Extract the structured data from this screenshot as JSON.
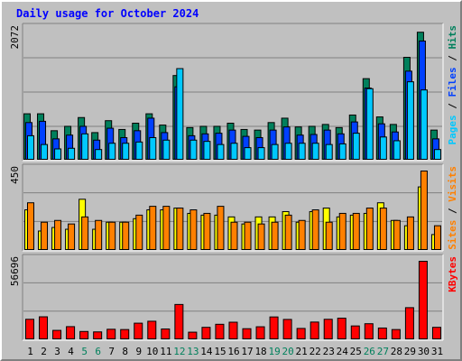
{
  "colors": {
    "background": "#c0c0c0",
    "title": "#0000ff",
    "hits": "#00805c",
    "files": "#0040ff",
    "pages": "#00c8ff",
    "visits": "#ffff00",
    "sites": "#ff8000",
    "kbytes": "#ff0000",
    "weekend_label": "#00805c",
    "weekday_label": "#000000",
    "gridline": "#808080"
  },
  "chart_data": [
    {
      "type": "bar",
      "title": "Daily usage for October 2024",
      "ymax_label": "2072",
      "ylim": [
        0,
        2072
      ],
      "legend": [
        {
          "text": "Pages",
          "color": "#00c8ff"
        },
        {
          "text": " / ",
          "color": "#000000"
        },
        {
          "text": "Files",
          "color": "#0040ff"
        },
        {
          "text": " / ",
          "color": "#000000"
        },
        {
          "text": "Hits",
          "color": "#00805c"
        }
      ],
      "categories": [
        "1",
        "2",
        "3",
        "4",
        "5",
        "6",
        "7",
        "8",
        "9",
        "10",
        "11",
        "12",
        "13",
        "14",
        "15",
        "16",
        "17",
        "18",
        "19",
        "20",
        "21",
        "22",
        "23",
        "24",
        "25",
        "26",
        "27",
        "28",
        "29",
        "30",
        "31"
      ],
      "series": [
        {
          "name": "Hits",
          "values": [
            740,
            740,
            470,
            540,
            680,
            440,
            630,
            490,
            590,
            740,
            560,
            1350,
            520,
            540,
            540,
            590,
            490,
            480,
            600,
            670,
            530,
            540,
            570,
            520,
            720,
            1300,
            690,
            570,
            1640,
            2040,
            480
          ]
        },
        {
          "name": "Files",
          "values": [
            600,
            620,
            340,
            400,
            540,
            320,
            510,
            360,
            470,
            670,
            440,
            1170,
            390,
            420,
            430,
            480,
            380,
            360,
            480,
            530,
            400,
            410,
            480,
            420,
            610,
            1150,
            580,
            450,
            1420,
            1900,
            340
          ]
        },
        {
          "name": "Pages",
          "values": [
            390,
            250,
            180,
            190,
            420,
            170,
            270,
            270,
            290,
            360,
            320,
            1460,
            320,
            300,
            250,
            270,
            200,
            200,
            250,
            270,
            270,
            270,
            250,
            260,
            430,
            1140,
            370,
            310,
            1250,
            1120,
            170
          ]
        }
      ]
    },
    {
      "type": "bar",
      "ymax_label": "450",
      "ylim": [
        0,
        450
      ],
      "legend": [
        {
          "text": "Sites",
          "color": "#ff8000"
        },
        {
          "text": " / ",
          "color": "#000000"
        },
        {
          "text": "Visits",
          "color": "#ff8000"
        }
      ],
      "categories": [
        "1",
        "2",
        "3",
        "4",
        "5",
        "6",
        "7",
        "8",
        "9",
        "10",
        "11",
        "12",
        "13",
        "14",
        "15",
        "16",
        "17",
        "18",
        "19",
        "20",
        "21",
        "22",
        "23",
        "24",
        "25",
        "26",
        "27",
        "28",
        "29",
        "30",
        "31"
      ],
      "series": [
        {
          "name": "Visits",
          "values": [
            230,
            110,
            130,
            120,
            290,
            120,
            160,
            160,
            180,
            230,
            230,
            240,
            210,
            200,
            200,
            190,
            150,
            190,
            190,
            220,
            160,
            220,
            240,
            190,
            200,
            210,
            270,
            170,
            140,
            360,
            90
          ]
        },
        {
          "name": "Sites",
          "values": [
            270,
            160,
            170,
            150,
            190,
            170,
            160,
            160,
            200,
            250,
            250,
            240,
            230,
            210,
            250,
            160,
            160,
            150,
            160,
            200,
            170,
            230,
            160,
            210,
            210,
            240,
            240,
            170,
            190,
            450,
            140
          ]
        }
      ]
    },
    {
      "type": "bar",
      "ymax_label": "56696",
      "ylim": [
        0,
        56696
      ],
      "legend": [
        {
          "text": "KBytes",
          "color": "#ff0000"
        }
      ],
      "categories": [
        "1",
        "2",
        "3",
        "4",
        "5",
        "6",
        "7",
        "8",
        "9",
        "10",
        "11",
        "12",
        "13",
        "14",
        "15",
        "16",
        "17",
        "18",
        "19",
        "20",
        "21",
        "22",
        "23",
        "24",
        "25",
        "26",
        "27",
        "28",
        "29",
        "30",
        "31"
      ],
      "series": [
        {
          "name": "KBytes",
          "values": [
            14800,
            16600,
            6800,
            9500,
            6000,
            5700,
            7600,
            7400,
            12000,
            13400,
            7800,
            25500,
            5500,
            9000,
            11200,
            12700,
            8000,
            9400,
            16500,
            14700,
            8200,
            12800,
            14800,
            15600,
            10000,
            11600,
            8500,
            7400,
            23200,
            56696,
            9000
          ]
        }
      ]
    }
  ]
}
